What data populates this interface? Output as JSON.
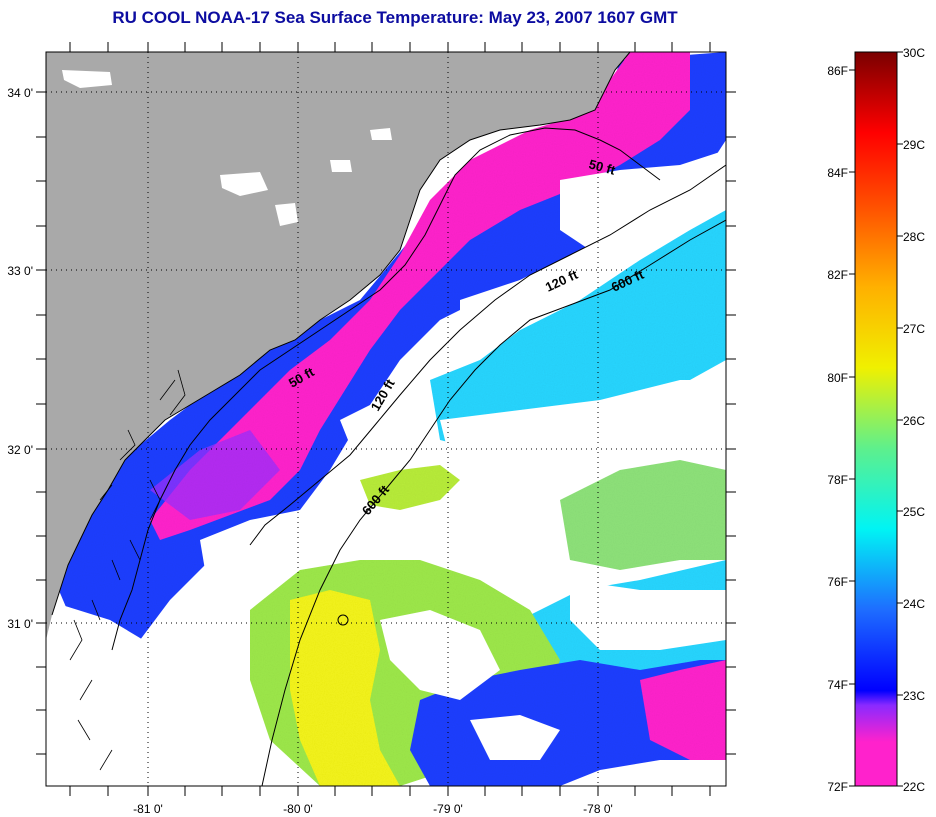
{
  "title": "RU COOL  NOAA-17  Sea Surface Temperature:  May 23, 2007 1607 GMT",
  "map": {
    "lon_labels": [
      "-81 0'",
      "-80 0'",
      "-79 0'",
      "-78 0'"
    ],
    "lat_labels": [
      "34 0'",
      "33 0'",
      "32 0'",
      "31 0'"
    ],
    "contour_labels": [
      {
        "text": "50 ft"
      },
      {
        "text": "50 ft"
      },
      {
        "text": "120 ft"
      },
      {
        "text": "120 ft"
      },
      {
        "text": "600 ft"
      },
      {
        "text": "600 ft"
      }
    ]
  },
  "colorbar": {
    "fahrenheit_labels": [
      "86F",
      "84F",
      "82F",
      "80F",
      "78F",
      "76F",
      "74F",
      "72F"
    ],
    "celsius_labels": [
      "30C",
      "29C",
      "28C",
      "27C",
      "26C",
      "25C",
      "24C",
      "23C",
      "22C"
    ]
  },
  "colors": {
    "land": "#a9a9a9",
    "title": "#0c0ca0",
    "cold": "#ff22cc",
    "cool": "#1f3fff",
    "mid": "#27d6ff",
    "warm": "#9de84a",
    "hot": "#f4f41a"
  }
}
